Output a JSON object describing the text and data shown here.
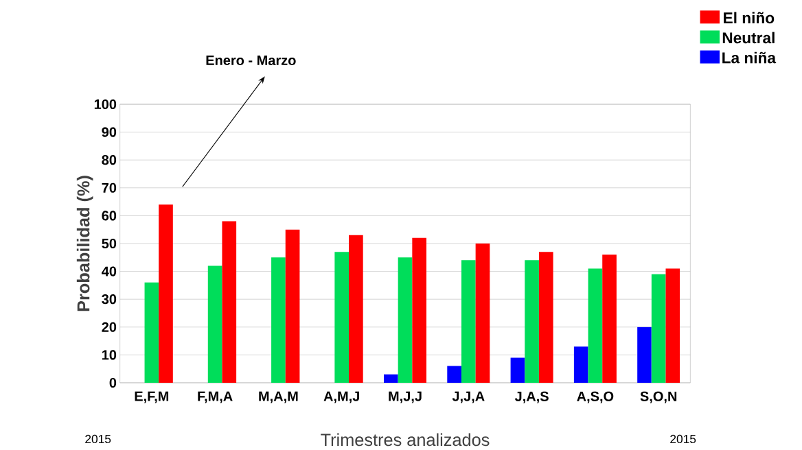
{
  "chart_data": {
    "type": "bar",
    "xlabel": "Trimestres analizados",
    "ylabel": "Probabilidad (%)",
    "categories": [
      "E,F,M",
      "F,M,A",
      "M,A,M",
      "A,M,J",
      "M,J,J",
      "J,J,A",
      "J,A,S",
      "A,S,O",
      "S,O,N"
    ],
    "series": [
      {
        "name": "La niña",
        "color": "#0000ff",
        "values": [
          null,
          null,
          null,
          null,
          3,
          6,
          9,
          13,
          20
        ]
      },
      {
        "name": "Neutral",
        "color": "#00dd5a",
        "values": [
          36,
          42,
          45,
          47,
          45,
          44,
          44,
          41,
          39
        ]
      },
      {
        "name": "El niño",
        "color": "#ff0000",
        "values": [
          64,
          58,
          55,
          53,
          52,
          50,
          47,
          46,
          41
        ]
      }
    ],
    "ylim": [
      0,
      100
    ],
    "yticks": [
      0,
      10,
      20,
      30,
      40,
      50,
      60,
      70,
      80,
      90,
      100
    ],
    "grid": "y",
    "legend": "top right",
    "annotations": [
      "Enero - Marzo",
      "2015",
      "2015"
    ]
  }
}
